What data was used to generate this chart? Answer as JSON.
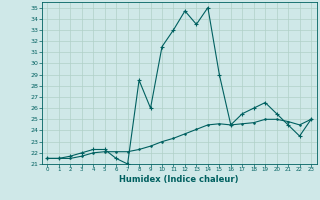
{
  "xlabel": "Humidex (Indice chaleur)",
  "ylabel": "",
  "xlim": [
    -0.5,
    23.5
  ],
  "ylim": [
    21,
    35.5
  ],
  "yticks": [
    21,
    22,
    23,
    24,
    25,
    26,
    27,
    28,
    29,
    30,
    31,
    32,
    33,
    34,
    35
  ],
  "xticks": [
    0,
    1,
    2,
    3,
    4,
    5,
    6,
    7,
    8,
    9,
    10,
    11,
    12,
    13,
    14,
    15,
    16,
    17,
    18,
    19,
    20,
    21,
    22,
    23
  ],
  "background_color": "#cfe8e8",
  "grid_color": "#b0d0c8",
  "line_color": "#006060",
  "line1_x": [
    0,
    1,
    2,
    3,
    4,
    5,
    6,
    7,
    8,
    9,
    10,
    11,
    12,
    13,
    14,
    15,
    16,
    17,
    18,
    19,
    20,
    21,
    22,
    23
  ],
  "line1_y": [
    21.5,
    21.5,
    21.7,
    22.0,
    22.3,
    22.3,
    21.5,
    21.0,
    28.5,
    26.0,
    31.5,
    33.0,
    34.7,
    33.5,
    35.0,
    29.0,
    24.5,
    25.5,
    26.0,
    26.5,
    25.5,
    24.5,
    23.5,
    25.0
  ],
  "line2_x": [
    0,
    1,
    2,
    3,
    4,
    5,
    6,
    7,
    8,
    9,
    10,
    11,
    12,
    13,
    14,
    15,
    16,
    17,
    18,
    19,
    20,
    21,
    22,
    23
  ],
  "line2_y": [
    21.5,
    21.5,
    21.5,
    21.7,
    22.0,
    22.1,
    22.1,
    22.1,
    22.3,
    22.6,
    23.0,
    23.3,
    23.7,
    24.1,
    24.5,
    24.6,
    24.5,
    24.6,
    24.7,
    25.0,
    25.0,
    24.8,
    24.5,
    25.0
  ]
}
